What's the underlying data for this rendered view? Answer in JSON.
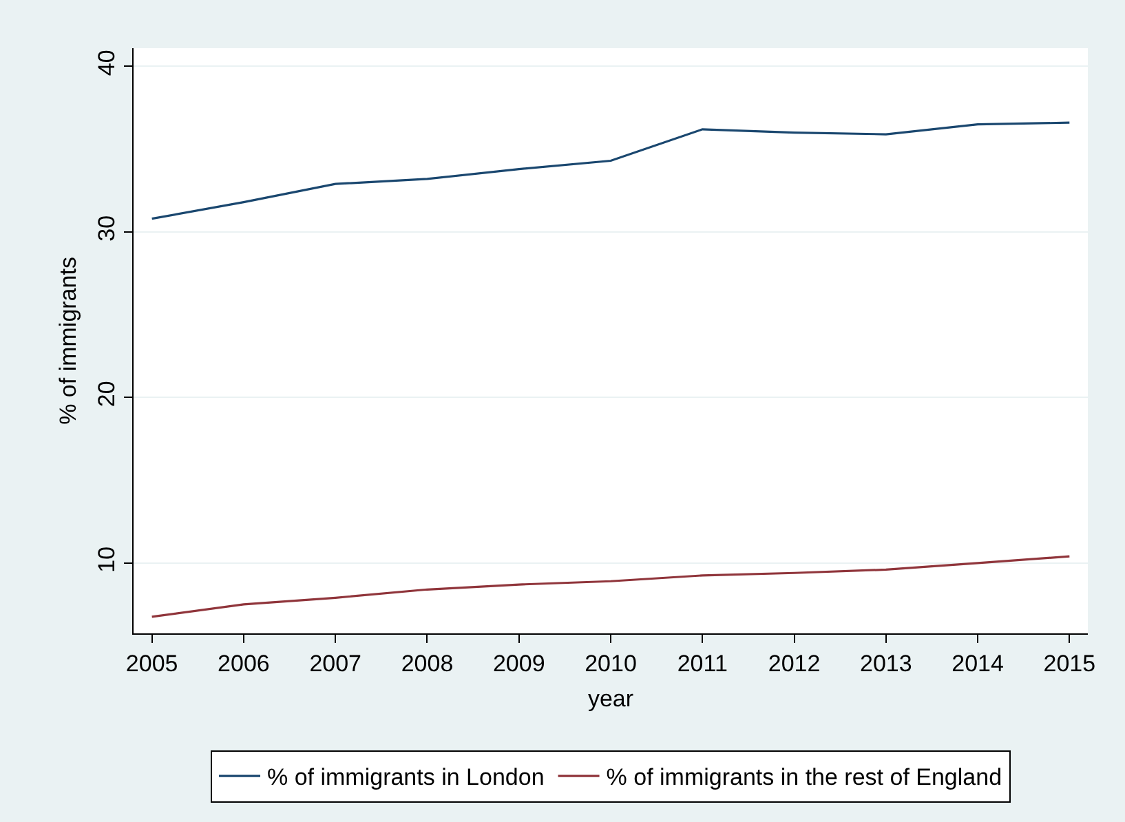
{
  "chart_data": {
    "type": "line",
    "xlabel": "year",
    "ylabel": "% of immigrants",
    "x": [
      2005,
      2006,
      2007,
      2008,
      2009,
      2010,
      2011,
      2012,
      2013,
      2014,
      2015
    ],
    "series": [
      {
        "name": "% of immigrants in London",
        "color": "#1a476f",
        "values": [
          30.8,
          31.8,
          32.9,
          33.2,
          33.8,
          34.3,
          36.2,
          36.0,
          35.9,
          36.5,
          36.6
        ]
      },
      {
        "name": "% of immigrants in the rest of England",
        "color": "#90353b",
        "values": [
          6.75,
          7.5,
          7.9,
          8.4,
          8.7,
          8.9,
          9.25,
          9.4,
          9.6,
          10.0,
          10.4
        ]
      }
    ],
    "xlim": [
      2004.8,
      2015.2
    ],
    "ylim": [
      5.75,
      41.1
    ],
    "xticks": [
      2005,
      2006,
      2007,
      2008,
      2009,
      2010,
      2011,
      2012,
      2013,
      2014,
      2015
    ],
    "yticks": [
      10,
      20,
      30,
      40
    ],
    "grid": "y",
    "legend": "bottom",
    "marker": "none",
    "line_style": "solid"
  }
}
